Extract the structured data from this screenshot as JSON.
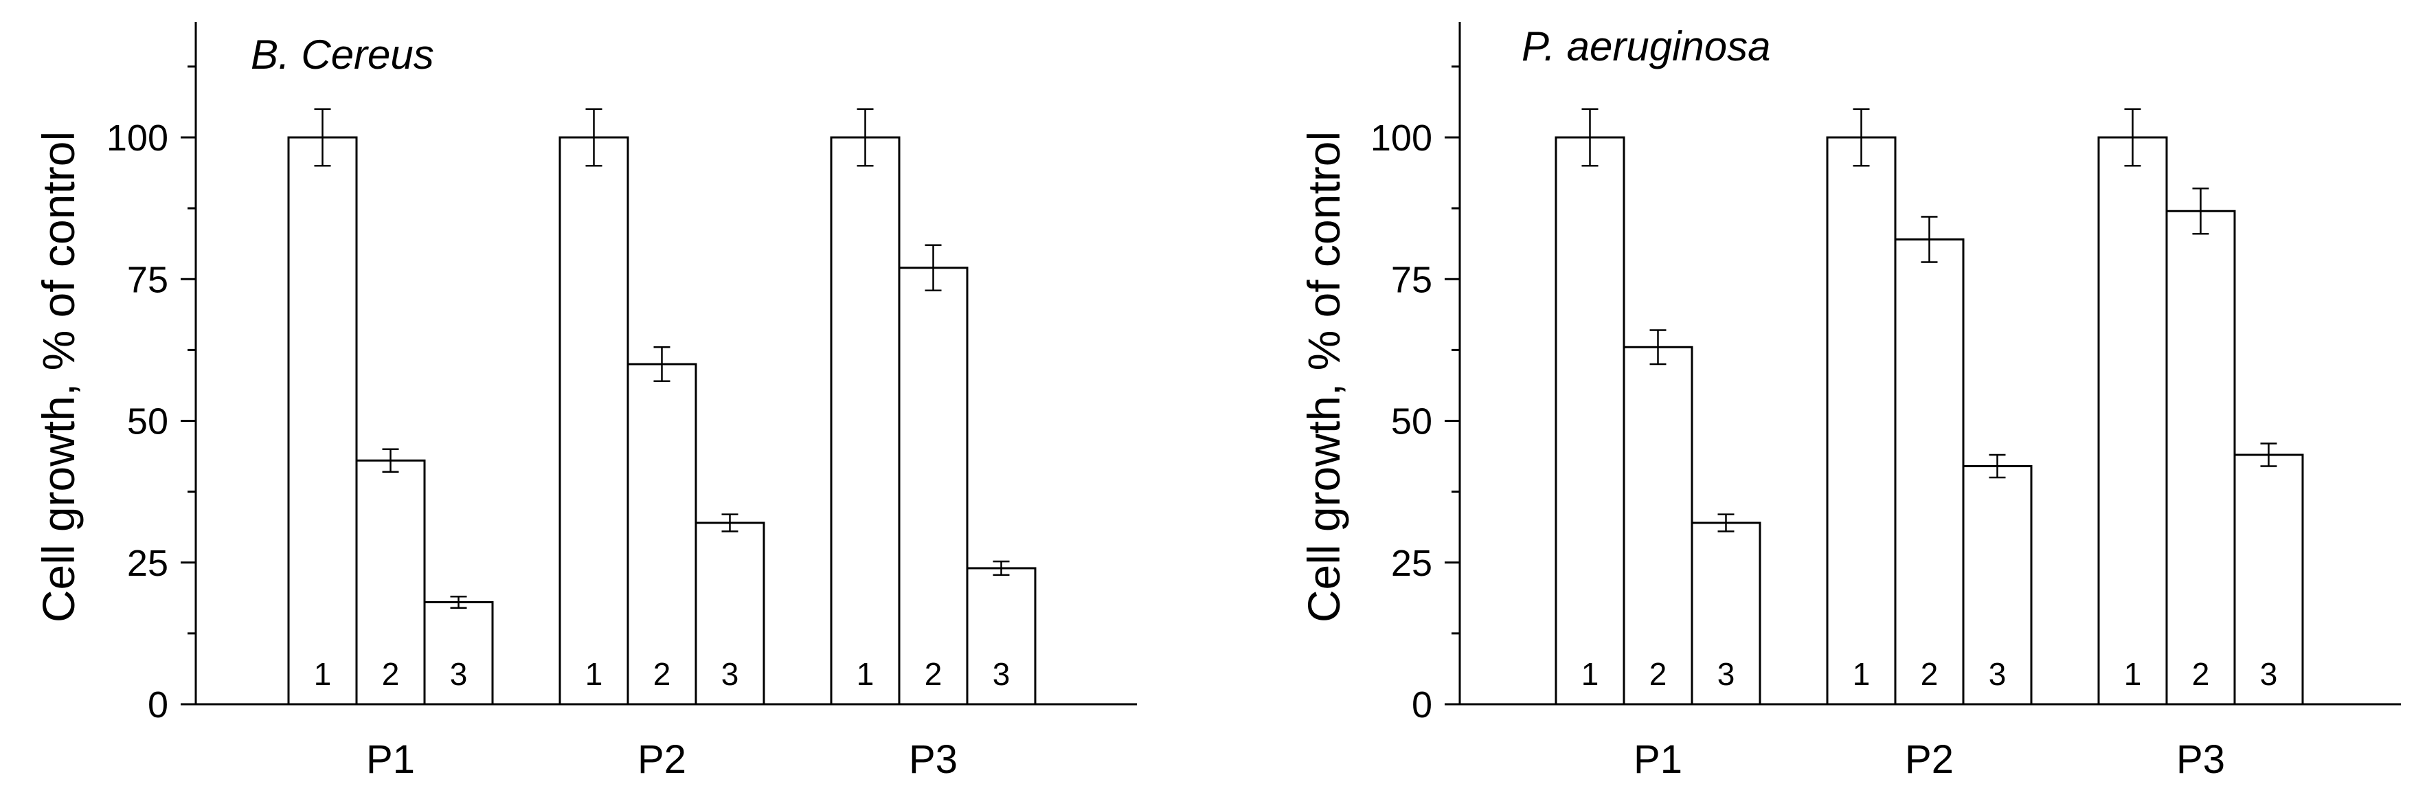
{
  "chart_data": [
    {
      "type": "bar",
      "title": "B. Cereus",
      "ylabel": "Cell growth, % of control",
      "xlabel": "",
      "ylim": [
        0,
        120
      ],
      "yticks": [
        0,
        25,
        50,
        75,
        100
      ],
      "grid": false,
      "categories": [
        "P1",
        "P2",
        "P3"
      ],
      "bar_labels": [
        "1",
        "2",
        "3"
      ],
      "series": [
        {
          "values": [
            100,
            100,
            100
          ],
          "errors": [
            5,
            5,
            5
          ]
        },
        {
          "values": [
            43,
            60,
            77
          ],
          "errors": [
            2,
            3,
            4
          ]
        },
        {
          "values": [
            18,
            32,
            24
          ],
          "errors": [
            1,
            1.5,
            1.2
          ]
        }
      ]
    },
    {
      "type": "bar",
      "title": "P. aeruginosa",
      "ylabel": "Cell growth, % of control",
      "xlabel": "",
      "ylim": [
        0,
        120
      ],
      "yticks": [
        0,
        25,
        50,
        75,
        100
      ],
      "grid": false,
      "categories": [
        "P1",
        "P2",
        "P3"
      ],
      "bar_labels": [
        "1",
        "2",
        "3"
      ],
      "series": [
        {
          "values": [
            100,
            100,
            100
          ],
          "errors": [
            5,
            5,
            5
          ]
        },
        {
          "values": [
            63,
            82,
            87
          ],
          "errors": [
            3,
            4,
            4
          ]
        },
        {
          "values": [
            32,
            42,
            44
          ],
          "errors": [
            1.5,
            2,
            2
          ]
        }
      ]
    }
  ]
}
